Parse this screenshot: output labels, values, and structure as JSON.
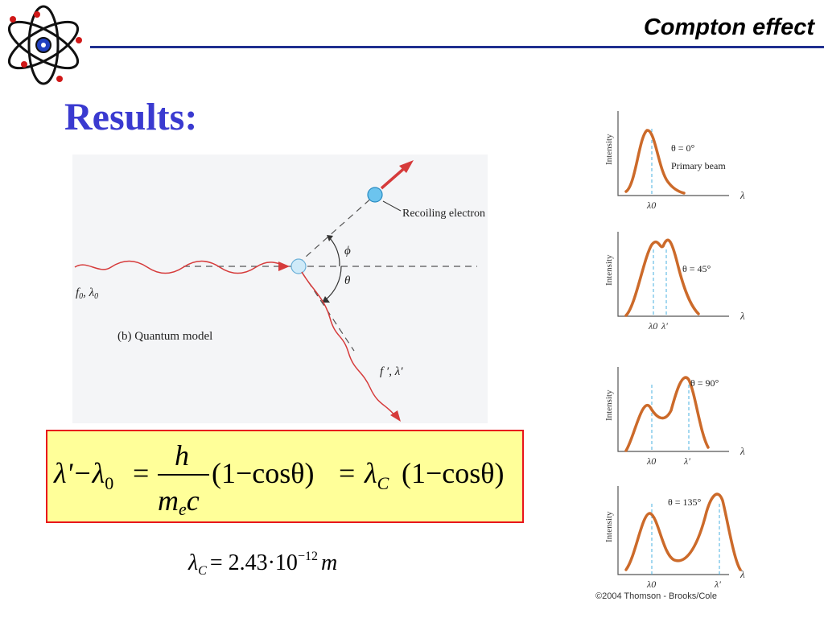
{
  "header": {
    "title": "Compton effect"
  },
  "slide": {
    "heading": "Results:"
  },
  "diagram": {
    "incoming_label_f": "f",
    "incoming_label_sub": "0",
    "incoming_label_lambda": ", λ",
    "recoil_label": "Recoiling electron",
    "phi": "ϕ",
    "theta": "θ",
    "model_label": "(b) Quantum model",
    "scattered_label": "f ′, λ′"
  },
  "graphs": {
    "ylabel": "Intensity",
    "xlabel": "λ",
    "panels": [
      {
        "angle": "θ = 0°",
        "note": "Primary beam",
        "ticks": [
          "λ0"
        ]
      },
      {
        "angle": "θ = 45°",
        "note": "",
        "ticks": [
          "λ0",
          "λ′"
        ]
      },
      {
        "angle": "θ = 90°",
        "note": "",
        "ticks": [
          "λ0",
          "λ′"
        ]
      },
      {
        "angle": "θ = 135°",
        "note": "",
        "ticks": [
          "λ0",
          "λ′"
        ]
      }
    ]
  },
  "formula": {
    "lhs": "λ'−λ",
    "lhs_sub": "0",
    "equals": "=",
    "numerator": "h",
    "denominator": "m",
    "denominator_sub": "e",
    "denominator_c": "c",
    "term": "(1−cosθ)",
    "equals2": "=",
    "lambda_c": "λ",
    "lambda_c_sub": "C",
    "term2": "(1−cosθ)"
  },
  "compton_wavelength": {
    "symbol": "λ",
    "sub": "C",
    "rhs": "= 2.43·10",
    "exp": "−12",
    "unit": "m"
  },
  "copyright": "©2004 Thomson - Brooks/Cole",
  "colors": {
    "heading": "#3a3ad0",
    "rule": "#1f2f8f",
    "curve": "#cc6a2a",
    "photon": "#d63b3b",
    "box_fill": "#ffff99",
    "box_border": "#e8141c"
  }
}
